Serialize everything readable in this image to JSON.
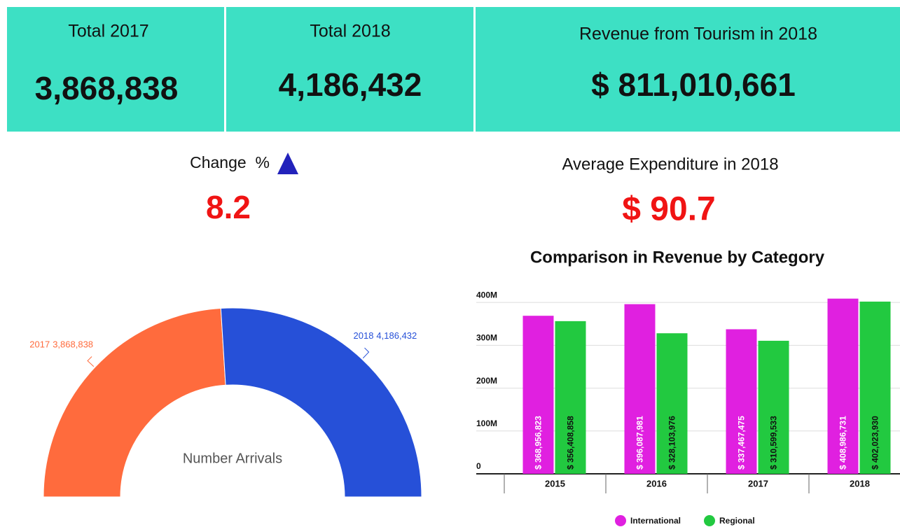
{
  "tiles": [
    {
      "title": "Total 2017",
      "value": "3,868,838"
    },
    {
      "title": "Total 2018",
      "value": "4,186,432"
    },
    {
      "title": "Revenue from Tourism in 2018",
      "value": "$ 811,010,661"
    }
  ],
  "change": {
    "title": "Change  %",
    "value": "8.2"
  },
  "expenditure": {
    "title": "Average Expenditure in 2018",
    "value": "$ 90.7"
  },
  "chart_data": [
    {
      "type": "half-donut",
      "center_label": "Number Arrivals",
      "categories": [
        "2017",
        "2018"
      ],
      "values": [
        3868838,
        4186432
      ],
      "value_labels": [
        "3,868,838",
        "4,186,432"
      ],
      "colors": [
        "#ff6b3d",
        "#2650d8"
      ]
    },
    {
      "type": "bar",
      "title": "Comparison in Revenue by Category",
      "categories": [
        "2015",
        "2016",
        "2017",
        "2018"
      ],
      "series": [
        {
          "name": "International",
          "color": "#e020e0",
          "values": [
            368956823,
            396087981,
            337467475,
            408986731
          ],
          "value_labels": [
            "$ 368,956,823",
            "$ 396,087,981",
            "$ 337,467,475",
            "$ 408,986,731"
          ]
        },
        {
          "name": "Regional",
          "color": "#22c940",
          "values": [
            356408858,
            328103976,
            310599533,
            402023930
          ],
          "value_labels": [
            "$ 356,408,858",
            "$ 328,103,976",
            "$ 310,599,533",
            "$ 402,023,930"
          ]
        }
      ],
      "ylim": [
        0,
        415000000
      ],
      "yticks": [
        0,
        {
          "value": 100000000,
          "label": "100M"
        },
        {
          "value": 200000000,
          "label": "200M"
        },
        {
          "value": 300000000,
          "label": "300M"
        },
        {
          "value": 400000000,
          "label": "400M"
        }
      ],
      "grid": true,
      "legend": "bottom"
    }
  ]
}
